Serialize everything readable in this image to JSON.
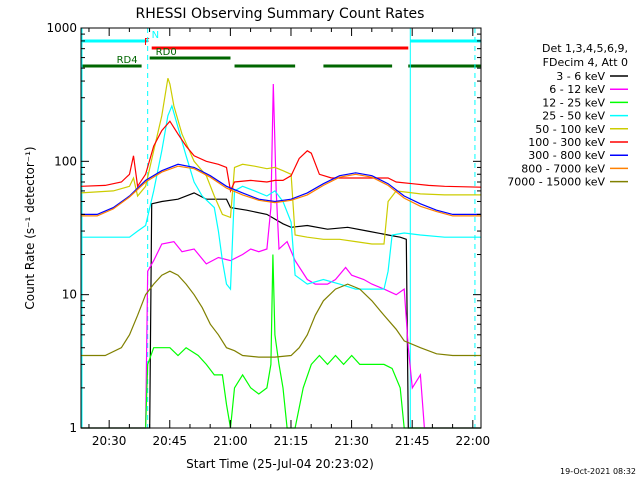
{
  "chart_data": {
    "type": "line",
    "title": "RHESSI Observing Summary Count Rates",
    "xlabel": "Start Time (25-Jul-04 20:23:02)",
    "ylabel": "Count Rate (s⁻¹ detector⁻¹)",
    "ylim": [
      1,
      1000
    ],
    "yscale": "log",
    "xlim_minutes": [
      0,
      99
    ],
    "y_ticks": [
      {
        "value": 1,
        "label": "1"
      },
      {
        "value": 10,
        "label": "10"
      },
      {
        "value": 100,
        "label": "100"
      },
      {
        "value": 1000,
        "label": "1000"
      }
    ],
    "x_ticks": [
      {
        "t": 6.97,
        "label": "20:30"
      },
      {
        "t": 21.97,
        "label": "20:45"
      },
      {
        "t": 36.97,
        "label": "21:00"
      },
      {
        "t": 51.97,
        "label": "21:15"
      },
      {
        "t": 66.97,
        "label": "21:30"
      },
      {
        "t": 81.97,
        "label": "21:45"
      },
      {
        "t": 96.97,
        "label": "22:00"
      }
    ],
    "legend_header": [
      "Det 1,3,4,5,6,9,",
      "FDecim 4, Att 0"
    ],
    "legend_placement": "right",
    "grid": false,
    "series": [
      {
        "name": "3 - 6 keV",
        "color": "#000000",
        "points": [
          [
            0,
            1
          ],
          [
            17,
            1
          ],
          [
            17.5,
            48
          ],
          [
            20,
            50
          ],
          [
            24,
            52
          ],
          [
            28,
            58
          ],
          [
            31,
            52
          ],
          [
            36,
            52
          ],
          [
            37,
            45
          ],
          [
            41,
            43
          ],
          [
            46,
            40
          ],
          [
            50,
            34
          ],
          [
            52,
            32
          ],
          [
            56,
            33
          ],
          [
            61,
            31
          ],
          [
            66,
            32
          ],
          [
            71,
            30
          ],
          [
            76,
            28
          ],
          [
            79,
            27
          ],
          [
            80.5,
            26
          ],
          [
            81,
            1
          ],
          [
            99,
            1
          ]
        ]
      },
      {
        "name": "6 - 12 keV",
        "color": "#ff00ff",
        "points": [
          [
            0,
            1
          ],
          [
            16,
            1
          ],
          [
            16.5,
            15
          ],
          [
            18,
            18
          ],
          [
            20,
            24
          ],
          [
            23,
            25
          ],
          [
            25,
            21
          ],
          [
            28,
            22
          ],
          [
            31,
            17
          ],
          [
            34,
            19
          ],
          [
            37,
            18
          ],
          [
            40,
            20
          ],
          [
            42,
            22
          ],
          [
            44,
            21
          ],
          [
            46,
            22
          ],
          [
            47,
            45
          ],
          [
            47.6,
            380
          ],
          [
            48.3,
            60
          ],
          [
            49,
            22
          ],
          [
            51,
            25
          ],
          [
            53,
            18
          ],
          [
            56,
            13
          ],
          [
            58,
            12
          ],
          [
            61,
            12
          ],
          [
            63,
            13
          ],
          [
            65.5,
            16
          ],
          [
            67,
            14
          ],
          [
            70,
            13
          ],
          [
            72,
            12
          ],
          [
            75,
            11
          ],
          [
            78,
            10
          ],
          [
            80,
            11
          ],
          [
            81,
            4
          ],
          [
            82,
            2
          ],
          [
            84,
            2.5
          ],
          [
            85,
            1
          ],
          [
            99,
            1
          ]
        ]
      },
      {
        "name": "12 - 25 keV",
        "color": "#00ff00",
        "points": [
          [
            0,
            1
          ],
          [
            16,
            1
          ],
          [
            16.5,
            3
          ],
          [
            18,
            4
          ],
          [
            20,
            4
          ],
          [
            22,
            4
          ],
          [
            24,
            3.5
          ],
          [
            26,
            4
          ],
          [
            29,
            3.5
          ],
          [
            31,
            3
          ],
          [
            33,
            2.5
          ],
          [
            35,
            2.5
          ],
          [
            36,
            1.5
          ],
          [
            37,
            1
          ],
          [
            38,
            2
          ],
          [
            40,
            2.5
          ],
          [
            42,
            2
          ],
          [
            44,
            1.8
          ],
          [
            46,
            2
          ],
          [
            47,
            3
          ],
          [
            47.5,
            20
          ],
          [
            48,
            5
          ],
          [
            49,
            3
          ],
          [
            50,
            2
          ],
          [
            51,
            1
          ],
          [
            53,
            1
          ],
          [
            55,
            2
          ],
          [
            57,
            3
          ],
          [
            59,
            3.5
          ],
          [
            61,
            3
          ],
          [
            63,
            3.5
          ],
          [
            65,
            3
          ],
          [
            67,
            3.5
          ],
          [
            69,
            3
          ],
          [
            71,
            3
          ],
          [
            73,
            3
          ],
          [
            75,
            3
          ],
          [
            77,
            2.8
          ],
          [
            79,
            2
          ],
          [
            80,
            1
          ],
          [
            99,
            1
          ]
        ]
      },
      {
        "name": "25 - 50 keV",
        "color": "#00ffff",
        "points": [
          [
            0,
            27
          ],
          [
            12,
            27
          ],
          [
            14,
            30
          ],
          [
            16,
            33
          ],
          [
            18,
            60
          ],
          [
            20,
            120
          ],
          [
            21.5,
            220
          ],
          [
            22.5,
            260
          ],
          [
            24,
            180
          ],
          [
            26,
            110
          ],
          [
            28,
            70
          ],
          [
            30,
            55
          ],
          [
            33,
            45
          ],
          [
            34,
            30
          ],
          [
            35,
            18
          ],
          [
            36,
            12
          ],
          [
            37,
            11
          ],
          [
            38,
            60
          ],
          [
            40,
            65
          ],
          [
            43,
            60
          ],
          [
            46,
            55
          ],
          [
            48,
            60
          ],
          [
            50,
            50
          ],
          [
            52,
            35
          ],
          [
            53,
            14
          ],
          [
            56,
            12
          ],
          [
            60,
            13
          ],
          [
            64,
            12
          ],
          [
            68,
            11
          ],
          [
            72,
            11
          ],
          [
            75,
            11
          ],
          [
            76,
            15
          ],
          [
            77,
            28
          ],
          [
            80,
            29
          ],
          [
            84,
            28
          ],
          [
            90,
            27
          ],
          [
            99,
            27
          ]
        ]
      },
      {
        "name": "50 - 100 keV",
        "color": "#cccc00",
        "points": [
          [
            0,
            58
          ],
          [
            8,
            60
          ],
          [
            12,
            65
          ],
          [
            13,
            75
          ],
          [
            14,
            55
          ],
          [
            16,
            65
          ],
          [
            18,
            120
          ],
          [
            20,
            220
          ],
          [
            21.5,
            420
          ],
          [
            22,
            380
          ],
          [
            23,
            260
          ],
          [
            25,
            160
          ],
          [
            28,
            100
          ],
          [
            31,
            78
          ],
          [
            33,
            55
          ],
          [
            35,
            40
          ],
          [
            37,
            38
          ],
          [
            38,
            90
          ],
          [
            40,
            95
          ],
          [
            43,
            92
          ],
          [
            46,
            88
          ],
          [
            48,
            90
          ],
          [
            50,
            85
          ],
          [
            52,
            80
          ],
          [
            53,
            28
          ],
          [
            56,
            27
          ],
          [
            60,
            26
          ],
          [
            64,
            26
          ],
          [
            68,
            25
          ],
          [
            72,
            24
          ],
          [
            75,
            24
          ],
          [
            76,
            50
          ],
          [
            78,
            60
          ],
          [
            84,
            57
          ],
          [
            90,
            56
          ],
          [
            99,
            56
          ]
        ]
      },
      {
        "name": "100 - 300 keV",
        "color": "#ff0000",
        "points": [
          [
            0,
            65
          ],
          [
            6,
            66
          ],
          [
            10,
            70
          ],
          [
            12,
            80
          ],
          [
            13,
            110
          ],
          [
            14,
            65
          ],
          [
            16,
            80
          ],
          [
            18,
            130
          ],
          [
            20,
            170
          ],
          [
            22,
            200
          ],
          [
            24,
            160
          ],
          [
            26,
            130
          ],
          [
            28,
            110
          ],
          [
            31,
            100
          ],
          [
            34,
            95
          ],
          [
            36,
            90
          ],
          [
            37,
            60
          ],
          [
            38,
            70
          ],
          [
            42,
            72
          ],
          [
            46,
            70
          ],
          [
            48,
            72
          ],
          [
            50,
            72
          ],
          [
            52,
            78
          ],
          [
            54,
            105
          ],
          [
            56,
            120
          ],
          [
            57,
            115
          ],
          [
            59,
            80
          ],
          [
            62,
            75
          ],
          [
            68,
            75
          ],
          [
            72,
            75
          ],
          [
            76,
            75
          ],
          [
            78,
            70
          ],
          [
            82,
            68
          ],
          [
            86,
            66
          ],
          [
            90,
            65
          ],
          [
            99,
            64
          ]
        ]
      },
      {
        "name": "300 - 800 keV",
        "color": "#0000ff",
        "points": [
          [
            0,
            40
          ],
          [
            4,
            40
          ],
          [
            8,
            45
          ],
          [
            12,
            55
          ],
          [
            16,
            72
          ],
          [
            20,
            85
          ],
          [
            24,
            95
          ],
          [
            28,
            90
          ],
          [
            32,
            78
          ],
          [
            36,
            65
          ],
          [
            40,
            58
          ],
          [
            44,
            52
          ],
          [
            48,
            50
          ],
          [
            52,
            52
          ],
          [
            56,
            58
          ],
          [
            60,
            68
          ],
          [
            64,
            78
          ],
          [
            68,
            82
          ],
          [
            72,
            78
          ],
          [
            76,
            68
          ],
          [
            80,
            55
          ],
          [
            84,
            48
          ],
          [
            88,
            43
          ],
          [
            92,
            40
          ],
          [
            99,
            40
          ]
        ]
      },
      {
        "name": "800 - 7000 keV",
        "color": "#ff8000",
        "points": [
          [
            0,
            39
          ],
          [
            4,
            39
          ],
          [
            8,
            44
          ],
          [
            12,
            54
          ],
          [
            16,
            70
          ],
          [
            20,
            83
          ],
          [
            24,
            92
          ],
          [
            28,
            88
          ],
          [
            32,
            76
          ],
          [
            36,
            63
          ],
          [
            40,
            56
          ],
          [
            44,
            51
          ],
          [
            48,
            49
          ],
          [
            52,
            51
          ],
          [
            56,
            56
          ],
          [
            60,
            66
          ],
          [
            64,
            76
          ],
          [
            68,
            80
          ],
          [
            72,
            76
          ],
          [
            76,
            66
          ],
          [
            80,
            53
          ],
          [
            84,
            46
          ],
          [
            88,
            42
          ],
          [
            92,
            39
          ],
          [
            99,
            39
          ]
        ]
      },
      {
        "name": "7000 - 15000 keV",
        "color": "#808000",
        "points": [
          [
            0,
            3.5
          ],
          [
            6,
            3.5
          ],
          [
            10,
            4
          ],
          [
            12,
            5
          ],
          [
            14,
            7
          ],
          [
            16,
            10
          ],
          [
            18,
            12
          ],
          [
            20,
            14
          ],
          [
            22,
            15
          ],
          [
            24,
            14
          ],
          [
            26,
            12
          ],
          [
            28,
            10
          ],
          [
            30,
            8
          ],
          [
            32,
            6
          ],
          [
            34,
            5
          ],
          [
            36,
            4
          ],
          [
            38,
            3.8
          ],
          [
            40,
            3.5
          ],
          [
            44,
            3.4
          ],
          [
            48,
            3.4
          ],
          [
            52,
            3.5
          ],
          [
            54,
            4
          ],
          [
            56,
            5
          ],
          [
            58,
            7
          ],
          [
            60,
            9
          ],
          [
            63,
            11
          ],
          [
            66,
            12
          ],
          [
            69,
            11
          ],
          [
            72,
            9
          ],
          [
            75,
            7
          ],
          [
            78,
            5.5
          ],
          [
            80,
            4.5
          ],
          [
            84,
            4
          ],
          [
            88,
            3.6
          ],
          [
            92,
            3.5
          ],
          [
            99,
            3.5
          ]
        ]
      }
    ],
    "flags": [
      {
        "label": "N",
        "color": "#00ffff",
        "intervals": [
          [
            0,
            16.5
          ],
          [
            81.5,
            99
          ]
        ]
      },
      {
        "label": "F",
        "color": "#ff0000",
        "intervals": [
          [
            17.5,
            81
          ]
        ]
      },
      {
        "label": "RD0",
        "color": "#006600",
        "intervals": [
          [
            17,
            37
          ]
        ]
      },
      {
        "label": "RD4",
        "color": "#006600",
        "intervals": [
          [
            0,
            15
          ],
          [
            38,
            53
          ],
          [
            60,
            77
          ],
          [
            81,
            99
          ]
        ]
      }
    ],
    "vlines": [
      {
        "t": 16.5,
        "color": "#00ffff",
        "style": "dashed"
      },
      {
        "t": 81.5,
        "color": "#00ffff",
        "style": "solid"
      },
      {
        "t": 97.5,
        "color": "#00ffff",
        "style": "dashed"
      }
    ],
    "timestamp": "19-Oct-2021 08:32"
  }
}
